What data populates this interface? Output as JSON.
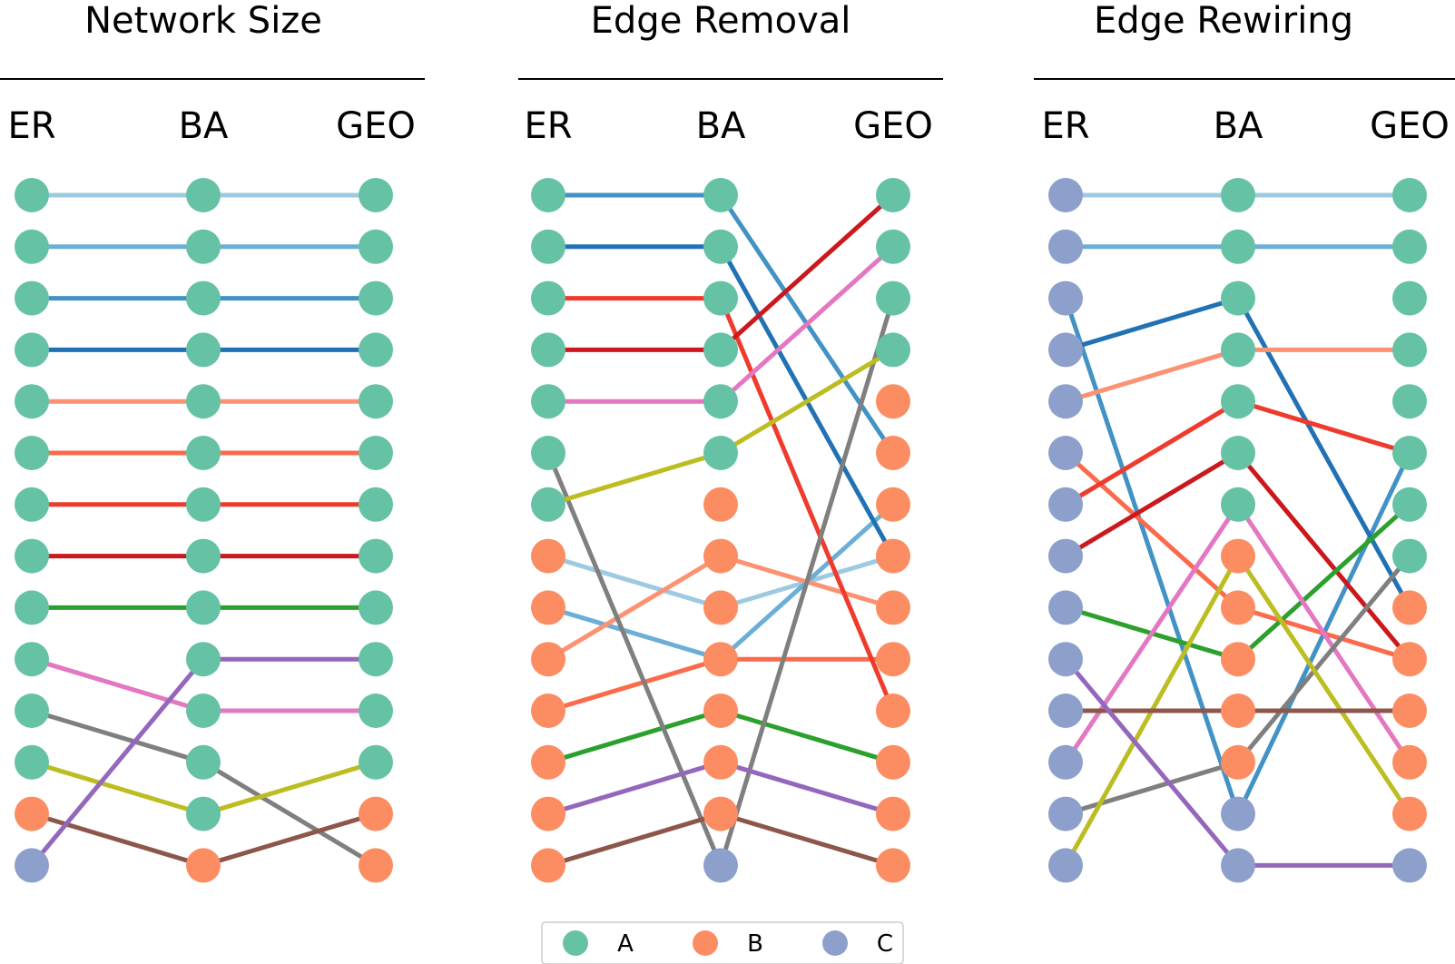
{
  "chart_data": {
    "type": "slopegraph",
    "groups": [
      {
        "title": "Network Size",
        "columns": [
          "ER",
          "BA",
          "GEO"
        ]
      },
      {
        "title": "Edge Removal",
        "columns": [
          "ER",
          "BA",
          "GEO"
        ]
      },
      {
        "title": "Edge Rewiring",
        "columns": [
          "ER",
          "BA",
          "GEO"
        ]
      }
    ],
    "rank_count": 14,
    "legend": [
      {
        "key": "A",
        "label": "A",
        "color": "#66c2a5"
      },
      {
        "key": "B",
        "label": "B",
        "color": "#fc8d62"
      },
      {
        "key": "C",
        "label": "C",
        "color": "#8da0cb"
      }
    ],
    "node_classes": [
      [
        "A",
        "A",
        "A",
        "A",
        "A",
        "A",
        "A",
        "A",
        "A",
        "A",
        "A",
        "A",
        "B",
        "C"
      ],
      [
        "A",
        "A",
        "A",
        "A",
        "A",
        "A",
        "A",
        "A",
        "A",
        "A",
        "A",
        "A",
        "A",
        "B"
      ],
      [
        "A",
        "A",
        "A",
        "A",
        "A",
        "A",
        "A",
        "A",
        "A",
        "A",
        "A",
        "A",
        "B",
        "B"
      ],
      [
        "A",
        "A",
        "A",
        "A",
        "A",
        "A",
        "A",
        "B",
        "B",
        "B",
        "B",
        "B",
        "B",
        "B"
      ],
      [
        "A",
        "A",
        "A",
        "A",
        "A",
        "A",
        "B",
        "B",
        "B",
        "B",
        "B",
        "B",
        "B",
        "C"
      ],
      [
        "A",
        "A",
        "A",
        "A",
        "B",
        "B",
        "B",
        "B",
        "B",
        "B",
        "B",
        "B",
        "B",
        "B"
      ],
      [
        "C",
        "C",
        "C",
        "C",
        "C",
        "C",
        "C",
        "C",
        "C",
        "C",
        "C",
        "C",
        "C",
        "C"
      ],
      [
        "A",
        "A",
        "A",
        "A",
        "A",
        "A",
        "A",
        "B",
        "B",
        "B",
        "B",
        "B",
        "C",
        "C"
      ],
      [
        "A",
        "A",
        "A",
        "A",
        "A",
        "A",
        "A",
        "A",
        "B",
        "B",
        "B",
        "B",
        "B",
        "C"
      ]
    ],
    "series": [
      {
        "name": "s1",
        "color": "#9ecae1",
        "ranks": [
          1,
          1,
          1,
          8,
          9,
          8,
          1,
          1,
          1
        ]
      },
      {
        "name": "s2",
        "color": "#6baed6",
        "ranks": [
          2,
          2,
          2,
          9,
          10,
          7,
          2,
          2,
          2
        ]
      },
      {
        "name": "s3",
        "color": "#4292c6",
        "ranks": [
          3,
          3,
          3,
          1,
          1,
          6,
          3,
          13,
          6
        ]
      },
      {
        "name": "s4",
        "color": "#2171b5",
        "ranks": [
          4,
          4,
          4,
          2,
          2,
          8,
          4,
          3,
          9
        ]
      },
      {
        "name": "s5",
        "color": "#fc9272",
        "ranks": [
          5,
          5,
          5,
          10,
          8,
          9,
          5,
          4,
          4
        ]
      },
      {
        "name": "s6",
        "color": "#fb6a4a",
        "ranks": [
          6,
          6,
          6,
          11,
          10,
          10,
          6,
          9,
          10
        ]
      },
      {
        "name": "s7",
        "color": "#ef3b2c",
        "ranks": [
          7,
          7,
          7,
          3,
          3,
          11,
          7,
          5,
          6
        ]
      },
      {
        "name": "s8",
        "color": "#cb181d",
        "ranks": [
          8,
          8,
          8,
          4,
          4,
          1,
          8,
          6,
          10
        ]
      },
      {
        "name": "s9",
        "color": "#2ca02c",
        "ranks": [
          9,
          9,
          9,
          12,
          11,
          12,
          9,
          10,
          7
        ]
      },
      {
        "name": "s10",
        "color": "#e377c2",
        "ranks": [
          10,
          11,
          11,
          5,
          5,
          2,
          12,
          7,
          12
        ]
      },
      {
        "name": "s11",
        "color": "#7f7f7f",
        "ranks": [
          11,
          12,
          14,
          6,
          14,
          3,
          13,
          12,
          8
        ]
      },
      {
        "name": "s12",
        "color": "#bcbd22",
        "ranks": [
          12,
          13,
          12,
          7,
          6,
          4,
          14,
          8,
          13
        ]
      },
      {
        "name": "s13",
        "color": "#8c564b",
        "ranks": [
          13,
          14,
          13,
          14,
          13,
          14,
          11,
          11,
          11
        ]
      },
      {
        "name": "s14",
        "color": "#9467bd",
        "ranks": [
          14,
          10,
          10,
          13,
          12,
          13,
          10,
          14,
          14
        ]
      }
    ]
  }
}
